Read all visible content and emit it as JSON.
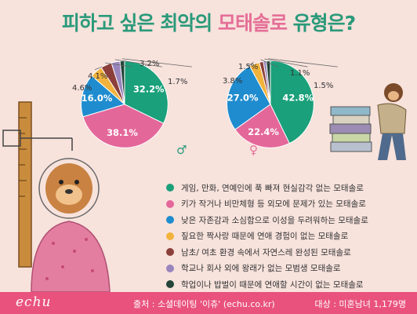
{
  "title": {
    "part1": "피하고 싶은 최악의 ",
    "part2": "모태솔로",
    "part3": " 유형은?"
  },
  "colors": [
    "#1aa07a",
    "#e4679a",
    "#1f8ccf",
    "#f2b33d",
    "#8c3f3a",
    "#9a86bd",
    "#23453a"
  ],
  "legend": [
    {
      "label": "게임, 만화, 연예인에 푹 빠져 현실감각 없는 모태솔로",
      "color": "#1aa07a"
    },
    {
      "label": "키가 작거나 비만체형 등 외모에 문제가 있는 모태솔로",
      "color": "#e4679a"
    },
    {
      "label": "낮은 자존감과 소심함으로 이성을 두려워하는 모태솔로",
      "color": "#1f8ccf"
    },
    {
      "label": "짚요한 짝사랑 때문에 연애 경험이 없는 모태솔로",
      "color": "#f2b33d"
    },
    {
      "label": "남초/ 여초 환경 속에서 자연스레 완성된 모태솔로",
      "color": "#8c3f3a"
    },
    {
      "label": "학교나 회사 외에 왕래가 없는 모범생 모태솔로",
      "color": "#9a86bd"
    },
    {
      "label": "학업이나 밥벌이 때문에 연애할 시간이 없는 모태솔로",
      "color": "#23453a"
    }
  ],
  "chart_data": [
    {
      "type": "pie",
      "gender_symbol": "♂",
      "values": [
        32.2,
        38.1,
        16.0,
        4.6,
        4.1,
        3.2,
        1.7
      ],
      "labels": [
        "32.2%",
        "38.1%",
        "16.0%",
        "4.6%",
        "4.1%",
        "3.2%",
        "1.7%"
      ],
      "colors": [
        "#1aa07a",
        "#e4679a",
        "#1f8ccf",
        "#f2b33d",
        "#8c3f3a",
        "#9a86bd",
        "#23453a"
      ]
    },
    {
      "type": "pie",
      "gender_symbol": "♀",
      "values": [
        42.8,
        22.4,
        27.0,
        3.8,
        1.5,
        1.1,
        1.5
      ],
      "labels": [
        "42.8%",
        "22.4%",
        "27.0%",
        "3.8%",
        "1.5%",
        "1.1%",
        "1.5%"
      ],
      "colors": [
        "#1aa07a",
        "#e4679a",
        "#1f8ccf",
        "#f2b33d",
        "#8c3f3a",
        "#9a86bd",
        "#23453a"
      ]
    }
  ],
  "footer": {
    "logo": "echu",
    "source": "출처 : 소셜데이팅 '이츄' (echu.co.kr)",
    "target": "대상 : 미혼남녀 1,179명"
  }
}
